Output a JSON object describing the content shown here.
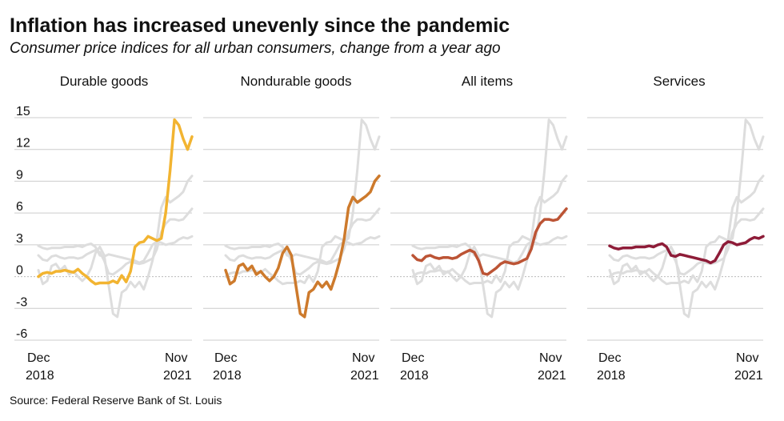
{
  "title": "Inflation has increased unevenly since the pandemic",
  "subtitle": "Consumer price indices for all urban consumers, change from a year ago",
  "source": "Source: Federal Reserve Bank of St. Louis",
  "chart_data": {
    "type": "line",
    "layout": "small-multiples",
    "ylim": [
      -6,
      15
    ],
    "yticks": [
      "15",
      "12",
      "9",
      "6",
      "3",
      "0",
      "-3",
      "-6"
    ],
    "ytick_values": [
      15,
      12,
      9,
      6,
      3,
      0,
      -3,
      -6
    ],
    "x_start": "Dec 2018",
    "x_end": "Nov 2021",
    "xticks": [
      {
        "line1": "Dec",
        "line2": "2018"
      },
      {
        "line1": "Nov",
        "line2": "2021"
      }
    ],
    "grid": true,
    "panels": [
      {
        "title": "Durable goods",
        "color": "#F2B431",
        "series_index": 0
      },
      {
        "title": "Nondurable goods",
        "color": "#CD7A2C",
        "series_index": 1
      },
      {
        "title": "All items",
        "color": "#BC5435",
        "series_index": 2
      },
      {
        "title": "Services",
        "color": "#8E1C38",
        "series_index": 3
      }
    ],
    "series": [
      {
        "values": [
          0.0,
          0.3,
          0.4,
          0.3,
          0.5,
          0.5,
          0.6,
          0.5,
          0.4,
          0.7,
          0.3,
          0.0,
          -0.4,
          -0.7,
          -0.6,
          -0.6,
          -0.6,
          -0.4,
          -0.6,
          0.1,
          -0.5,
          0.5,
          2.8,
          3.2,
          3.3,
          3.8,
          3.6,
          3.4,
          3.6,
          6.0,
          10.0,
          14.8,
          14.3,
          13.0,
          12.0,
          13.2
        ]
      },
      {
        "values": [
          0.6,
          -0.7,
          -0.4,
          1.0,
          1.2,
          0.6,
          1.0,
          0.2,
          0.5,
          0.0,
          -0.4,
          0.0,
          0.8,
          2.2,
          2.8,
          2.0,
          -0.8,
          -3.5,
          -3.8,
          -1.5,
          -1.2,
          -0.5,
          -1.0,
          -0.5,
          -1.2,
          0.0,
          1.5,
          3.5,
          6.5,
          7.5,
          7.0,
          7.3,
          7.6,
          8.0,
          9.0,
          9.5
        ]
      },
      {
        "values": [
          2.0,
          1.6,
          1.5,
          1.9,
          2.0,
          1.8,
          1.7,
          1.8,
          1.8,
          1.7,
          1.8,
          2.1,
          2.3,
          2.5,
          2.3,
          1.5,
          0.3,
          0.2,
          0.5,
          0.8,
          1.2,
          1.4,
          1.3,
          1.2,
          1.3,
          1.5,
          1.7,
          2.6,
          4.2,
          5.0,
          5.4,
          5.4,
          5.3,
          5.4,
          5.9,
          6.4
        ]
      },
      {
        "values": [
          2.9,
          2.7,
          2.6,
          2.7,
          2.7,
          2.7,
          2.8,
          2.8,
          2.8,
          2.9,
          2.8,
          3.0,
          3.1,
          2.8,
          2.0,
          1.9,
          2.1,
          2.0,
          1.9,
          1.8,
          1.7,
          1.6,
          1.5,
          1.3,
          1.5,
          2.2,
          3.0,
          3.3,
          3.2,
          3.0,
          3.1,
          3.2,
          3.5,
          3.7,
          3.6,
          3.8
        ]
      }
    ]
  }
}
